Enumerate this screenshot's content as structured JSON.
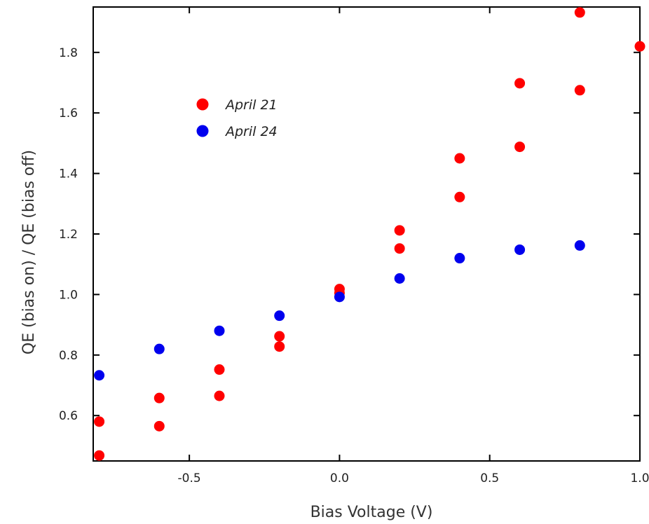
{
  "chart_data": {
    "type": "scatter",
    "title": "",
    "xlabel": "Bias Voltage (V)",
    "ylabel": "QE (bias on) / QE (bias off)",
    "xlim": [
      -0.82,
      1.0
    ],
    "ylim": [
      0.45,
      1.95
    ],
    "x_ticks": [
      -0.5,
      0.0,
      0.5,
      1.0
    ],
    "x_tick_labels": [
      "-0.5",
      "0.0",
      "0.5",
      "1.0"
    ],
    "y_ticks": [
      0.6,
      0.8,
      1.0,
      1.2,
      1.4,
      1.6,
      1.8
    ],
    "y_tick_labels": [
      "0.6",
      "0.8",
      "1.0",
      "1.2",
      "1.4",
      "1.6",
      "1.8"
    ],
    "grid": false,
    "legend_position": "top-left",
    "series": [
      {
        "name": "April 21",
        "color": "#ff0000",
        "points": [
          [
            -0.8,
            0.58
          ],
          [
            -0.8,
            0.468
          ],
          [
            -0.6,
            0.658
          ],
          [
            -0.6,
            0.565
          ],
          [
            -0.4,
            0.752
          ],
          [
            -0.4,
            0.665
          ],
          [
            -0.2,
            0.862
          ],
          [
            -0.2,
            0.828
          ],
          [
            0.0,
            1.018
          ],
          [
            0.0,
            1.005
          ],
          [
            0.2,
            1.212
          ],
          [
            0.2,
            1.152
          ],
          [
            0.4,
            1.45
          ],
          [
            0.4,
            1.322
          ],
          [
            0.6,
            1.698
          ],
          [
            0.6,
            1.488
          ],
          [
            0.8,
            1.932
          ],
          [
            0.8,
            1.675
          ],
          [
            1.0,
            1.82
          ]
        ]
      },
      {
        "name": "April 24",
        "color": "#0000ee",
        "points": [
          [
            -0.8,
            0.733
          ],
          [
            -0.6,
            0.82
          ],
          [
            -0.4,
            0.88
          ],
          [
            -0.2,
            0.93
          ],
          [
            0.0,
            0.992
          ],
          [
            0.2,
            1.053
          ],
          [
            0.4,
            1.12
          ],
          [
            0.6,
            1.148
          ],
          [
            0.8,
            1.162
          ]
        ]
      }
    ]
  }
}
